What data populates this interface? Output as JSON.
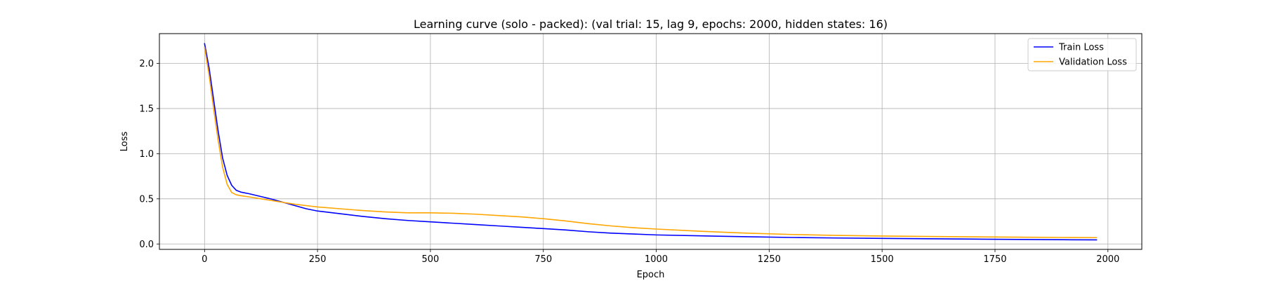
{
  "chart_data": {
    "type": "line",
    "title": "Learning curve (solo - packed): (val trial: 15, lag 9, epochs: 2000, hidden states: 16)",
    "xlabel": "Epoch",
    "ylabel": "Loss",
    "xlim": [
      -100,
      2075
    ],
    "ylim": [
      -0.06,
      2.33
    ],
    "x_ticks": [
      0,
      250,
      500,
      750,
      1000,
      1250,
      1500,
      1750,
      2000
    ],
    "y_ticks": [
      0.0,
      0.5,
      1.0,
      1.5,
      2.0
    ],
    "x_tick_labels": [
      "0",
      "250",
      "500",
      "750",
      "1000",
      "1250",
      "1500",
      "1750",
      "2000"
    ],
    "y_tick_labels": [
      "0.0",
      "0.5",
      "1.0",
      "1.5",
      "2.0"
    ],
    "grid": true,
    "legend_position": "top-right",
    "series": [
      {
        "name": "Train Loss",
        "color": "#0000ff",
        "x": [
          0,
          10,
          20,
          30,
          40,
          50,
          60,
          70,
          80,
          100,
          125,
          150,
          175,
          200,
          225,
          250,
          300,
          350,
          400,
          450,
          500,
          550,
          600,
          650,
          700,
          750,
          800,
          850,
          900,
          950,
          1000,
          1100,
          1200,
          1300,
          1400,
          1500,
          1600,
          1700,
          1800,
          1900,
          1975
        ],
        "y": [
          2.22,
          1.95,
          1.6,
          1.25,
          0.95,
          0.76,
          0.65,
          0.595,
          0.575,
          0.555,
          0.525,
          0.495,
          0.46,
          0.425,
          0.39,
          0.365,
          0.335,
          0.305,
          0.28,
          0.26,
          0.245,
          0.23,
          0.215,
          0.2,
          0.185,
          0.17,
          0.155,
          0.135,
          0.12,
          0.11,
          0.1,
          0.09,
          0.08,
          0.072,
          0.066,
          0.062,
          0.058,
          0.054,
          0.05,
          0.047,
          0.045
        ]
      },
      {
        "name": "Validation Loss",
        "color": "#ffa500",
        "x": [
          0,
          10,
          20,
          30,
          40,
          50,
          60,
          70,
          80,
          100,
          125,
          150,
          175,
          200,
          225,
          250,
          300,
          350,
          400,
          450,
          500,
          550,
          600,
          650,
          700,
          750,
          800,
          850,
          900,
          950,
          1000,
          1100,
          1200,
          1300,
          1400,
          1500,
          1600,
          1700,
          1800,
          1900,
          1975
        ],
        "y": [
          2.18,
          1.87,
          1.5,
          1.15,
          0.85,
          0.66,
          0.57,
          0.545,
          0.535,
          0.52,
          0.5,
          0.48,
          0.46,
          0.44,
          0.425,
          0.41,
          0.39,
          0.37,
          0.355,
          0.345,
          0.345,
          0.34,
          0.33,
          0.315,
          0.3,
          0.28,
          0.255,
          0.225,
          0.2,
          0.18,
          0.165,
          0.14,
          0.12,
          0.105,
          0.095,
          0.088,
          0.083,
          0.079,
          0.075,
          0.072,
          0.07
        ]
      }
    ]
  }
}
